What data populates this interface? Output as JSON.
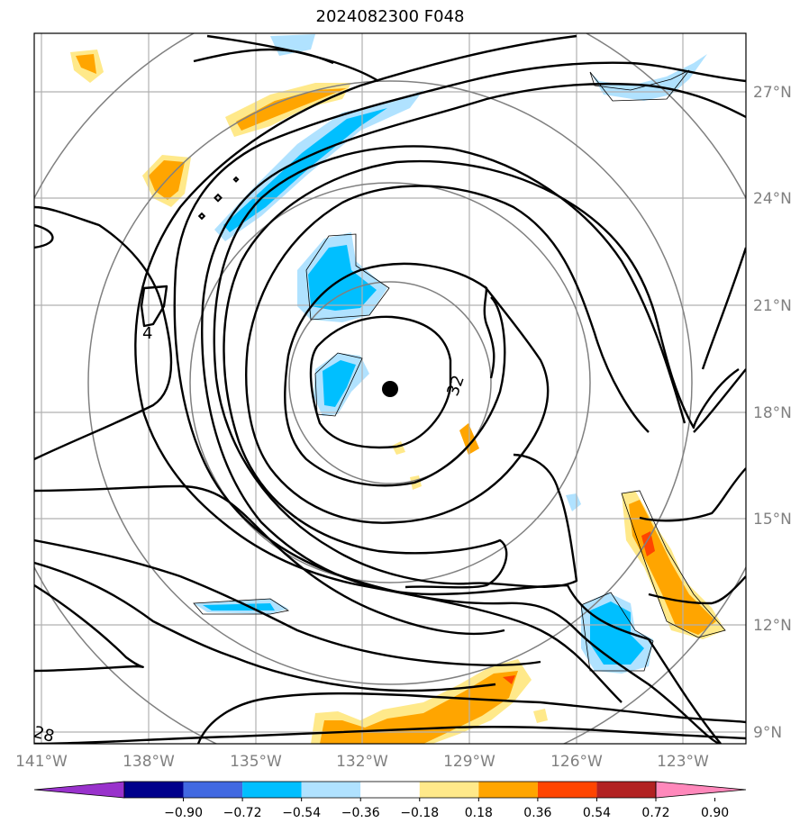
{
  "title": "2024082300 F048",
  "latitudes": [
    "27°N",
    "24°N",
    "21°N",
    "18°N",
    "15°N",
    "12°N",
    "9°N"
  ],
  "longitudes": [
    "141°W",
    "138°W",
    "135°W",
    "132°W",
    "129°W",
    "126°W",
    "123°W"
  ],
  "contour_labels": [
    "4",
    "32",
    "28"
  ],
  "colorbar": {
    "ticks": [
      "−0.90",
      "−0.72",
      "−0.54",
      "−0.36",
      "−0.18",
      "0.18",
      "0.36",
      "0.54",
      "0.72",
      "0.90"
    ],
    "colors": [
      "#9932cc",
      "#00008b",
      "#4169e1",
      "#00bfff",
      "#b0e2ff",
      "#ffffff",
      "#ffe98a",
      "#ffa500",
      "#ff4500",
      "#b22222",
      "#ff88bb"
    ]
  },
  "storm_center": {
    "lon": -131.7,
    "lat": 18.7
  }
}
